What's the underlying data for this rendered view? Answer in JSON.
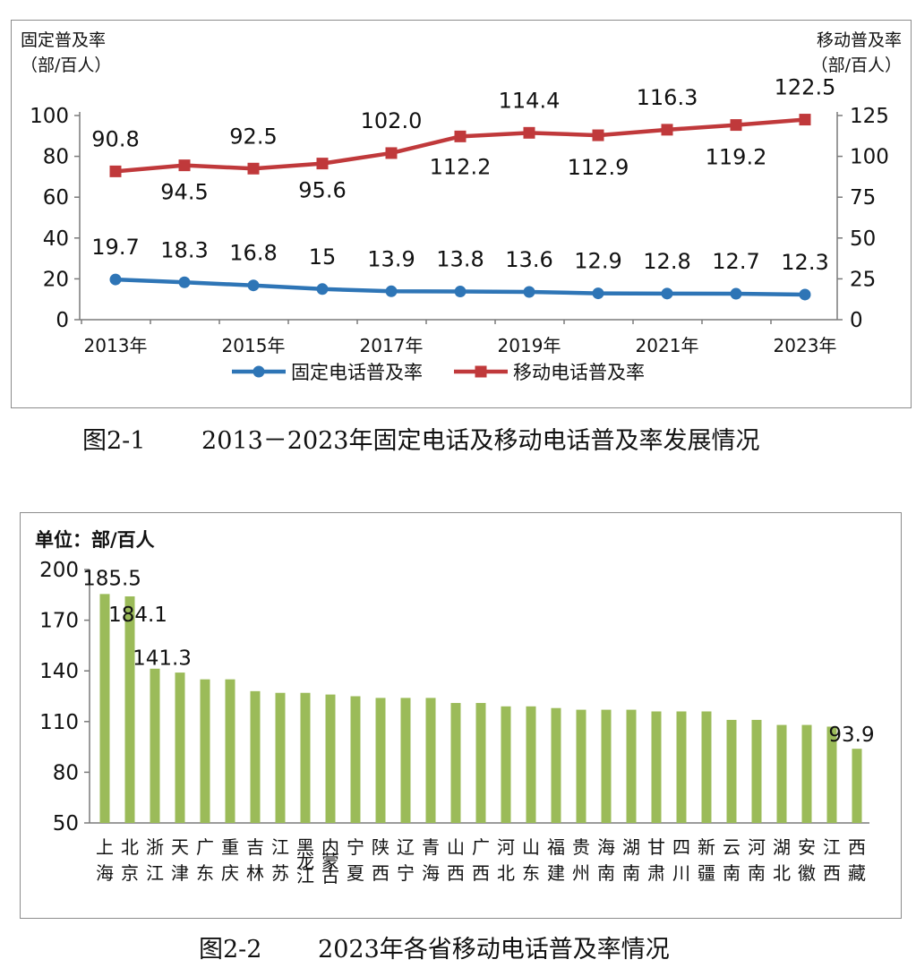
{
  "chart_data": [
    {
      "type": "line",
      "caption": "图2-1　　 2013－2023年固定电话及移动电话普及率发展情况",
      "y_left_label": [
        "固定普及率",
        "（部/百人）"
      ],
      "y_right_label": [
        "移动普及率",
        "（部/百人）"
      ],
      "x": [
        "2013年",
        "2014年",
        "2015年",
        "2016年",
        "2017年",
        "2018年",
        "2019年",
        "2020年",
        "2021年",
        "2022年",
        "2023年"
      ],
      "x_tick_labels": [
        "2013年",
        "",
        "2015年",
        "",
        "2017年",
        "",
        "2019年",
        "",
        "2021年",
        "",
        "2023年"
      ],
      "y_left_ticks": [
        "0",
        "20",
        "40",
        "60",
        "80",
        "100"
      ],
      "y_right_ticks": [
        "0",
        "25",
        "50",
        "75",
        "100",
        "125"
      ],
      "y_left_range": [
        0,
        100
      ],
      "y_right_range": [
        0,
        125
      ],
      "series": [
        {
          "name": "固定电话普及率",
          "axis": "left",
          "color": "#2e75b6",
          "marker": "circle",
          "values": [
            19.7,
            18.3,
            16.8,
            15.0,
            13.9,
            13.8,
            13.6,
            12.9,
            12.8,
            12.7,
            12.3
          ],
          "labels": [
            "19.7",
            "18.3",
            "16.8",
            "15",
            "13.9",
            "13.8",
            "13.6",
            "12.9",
            "12.8",
            "12.7",
            "12.3"
          ]
        },
        {
          "name": "移动电话普及率",
          "axis": "right",
          "color": "#c0393b",
          "marker": "square",
          "values": [
            90.8,
            94.5,
            92.5,
            95.6,
            102.0,
            112.2,
            114.4,
            112.9,
            116.3,
            119.2,
            122.5
          ],
          "labels": [
            "90.8",
            "94.5",
            "92.5",
            "95.6",
            "102.0",
            "112.2",
            "114.4",
            "112.9",
            "116.3",
            "119.2",
            "122.5"
          ]
        }
      ],
      "legend_position": "bottom",
      "grid": false
    },
    {
      "type": "bar",
      "caption": "图2-2　　 2023年各省移动电话普及率情况",
      "unit_label": "单位：部/百人",
      "categories": [
        "上海",
        "北京",
        "浙江",
        "天津",
        "广东",
        "重庆",
        "吉林",
        "江苏",
        "黑龙江",
        "内蒙古",
        "宁夏",
        "陕西",
        "辽宁",
        "青海",
        "山西",
        "广西",
        "河北",
        "山东",
        "福建",
        "贵州",
        "海南",
        "湖南",
        "甘肃",
        "四川",
        "新疆",
        "云南",
        "河南",
        "湖北",
        "安徽",
        "江西",
        "西藏"
      ],
      "values": [
        185.5,
        184.1,
        141.3,
        139,
        135,
        135,
        128,
        127,
        127,
        126,
        125,
        124,
        124,
        124,
        121,
        121,
        119,
        119,
        118,
        117,
        117,
        117,
        116,
        116,
        116,
        111,
        111,
        108,
        108,
        107,
        93.9
      ],
      "value_labels": [
        "185.5",
        "184.1",
        "141.3",
        "",
        "",
        "",
        "",
        "",
        "",
        "",
        "",
        "",
        "",
        "",
        "",
        "",
        "",
        "",
        "",
        "",
        "",
        "",
        "",
        "",
        "",
        "",
        "",
        "",
        "",
        "",
        "93.9"
      ],
      "y_ticks": [
        "50",
        "80",
        "110",
        "140",
        "170",
        "200"
      ],
      "ylim": [
        50,
        200
      ],
      "color": "#9bbb59",
      "grid": false
    }
  ]
}
